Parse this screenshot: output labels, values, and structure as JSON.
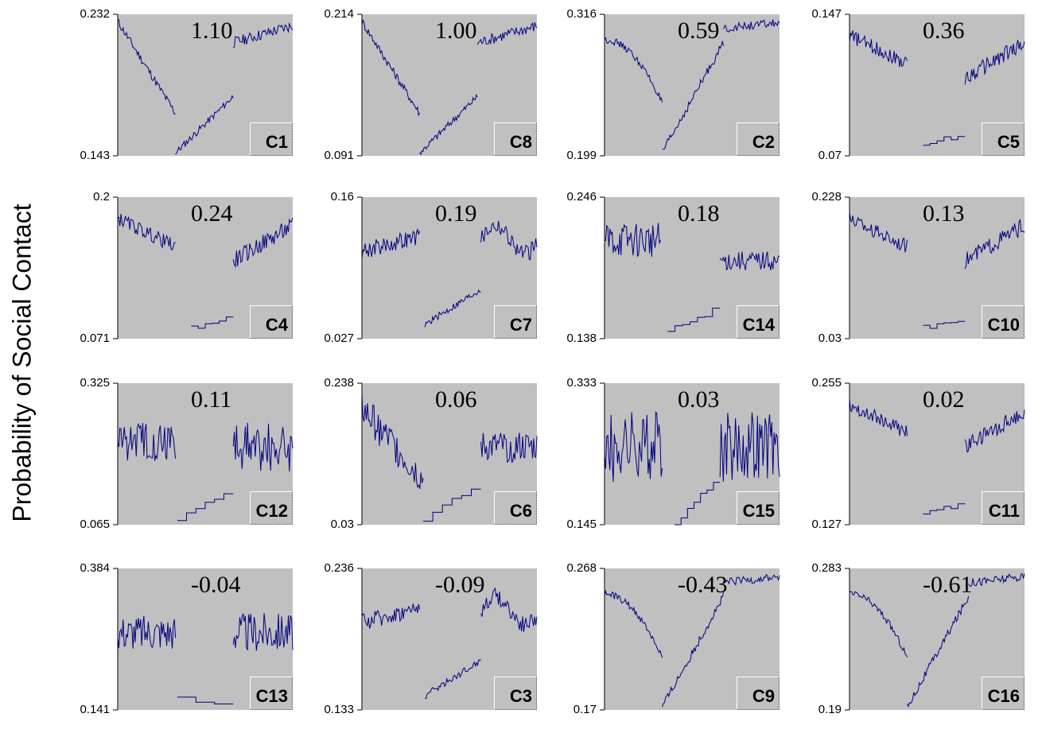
{
  "chart_data": {
    "type": "line",
    "ylabel": "Probability of Social Contact",
    "line_color": "#000080",
    "background_color": "#c0c0c0",
    "panels": [
      {
        "id": "C1",
        "corr": "1.10",
        "ymax": "0.232",
        "ymin": "0.143",
        "shape": "vdown",
        "rows": 0,
        "col": 0
      },
      {
        "id": "C8",
        "corr": "1.00",
        "ymax": "0.214",
        "ymin": "0.091",
        "shape": "vdown",
        "rows": 0,
        "col": 1
      },
      {
        "id": "C2",
        "corr": "0.59",
        "ymax": "0.316",
        "ymin": "0.199",
        "shape": "v",
        "rows": 0,
        "col": 2
      },
      {
        "id": "C5",
        "corr": "0.36",
        "ymax": "0.147",
        "ymin": "0.07",
        "shape": "drop",
        "rows": 0,
        "col": 3
      },
      {
        "id": "C4",
        "corr": "0.24",
        "ymax": "0.2",
        "ymin": "0.071",
        "shape": "drop",
        "rows": 1,
        "col": 0
      },
      {
        "id": "C7",
        "corr": "0.19",
        "ymax": "0.16",
        "ymin": "0.027",
        "shape": "dropup",
        "rows": 1,
        "col": 1
      },
      {
        "id": "C14",
        "corr": "0.18",
        "ymax": "0.246",
        "ymin": "0.138",
        "shape": "bump",
        "rows": 1,
        "col": 2
      },
      {
        "id": "C10",
        "corr": "0.13",
        "ymax": "0.228",
        "ymin": "0.03",
        "shape": "drop",
        "rows": 1,
        "col": 3
      },
      {
        "id": "C12",
        "corr": "0.11",
        "ymax": "0.325",
        "ymin": "0.065",
        "shape": "noisy",
        "rows": 2,
        "col": 0
      },
      {
        "id": "C6",
        "corr": "0.06",
        "ymax": "0.238",
        "ymin": "0.03",
        "shape": "noisydrop",
        "rows": 2,
        "col": 1
      },
      {
        "id": "C15",
        "corr": "0.03",
        "ymax": "0.333",
        "ymin": "0.145",
        "shape": "hump",
        "rows": 2,
        "col": 2
      },
      {
        "id": "C11",
        "corr": "0.02",
        "ymax": "0.255",
        "ymin": "0.127",
        "shape": "drop",
        "rows": 2,
        "col": 3
      },
      {
        "id": "C13",
        "corr": "-0.04",
        "ymax": "0.384",
        "ymin": "0.141",
        "shape": "flatdrop",
        "rows": 3,
        "col": 0
      },
      {
        "id": "C3",
        "corr": "-0.09",
        "ymax": "0.236",
        "ymin": "0.133",
        "shape": "dropup",
        "rows": 3,
        "col": 1
      },
      {
        "id": "C9",
        "corr": "-0.43",
        "ymax": "0.268",
        "ymin": "0.17",
        "shape": "v",
        "rows": 3,
        "col": 2
      },
      {
        "id": "C16",
        "corr": "-0.61",
        "ymax": "0.283",
        "ymin": "0.19",
        "shape": "v",
        "rows": 3,
        "col": 3
      }
    ]
  }
}
